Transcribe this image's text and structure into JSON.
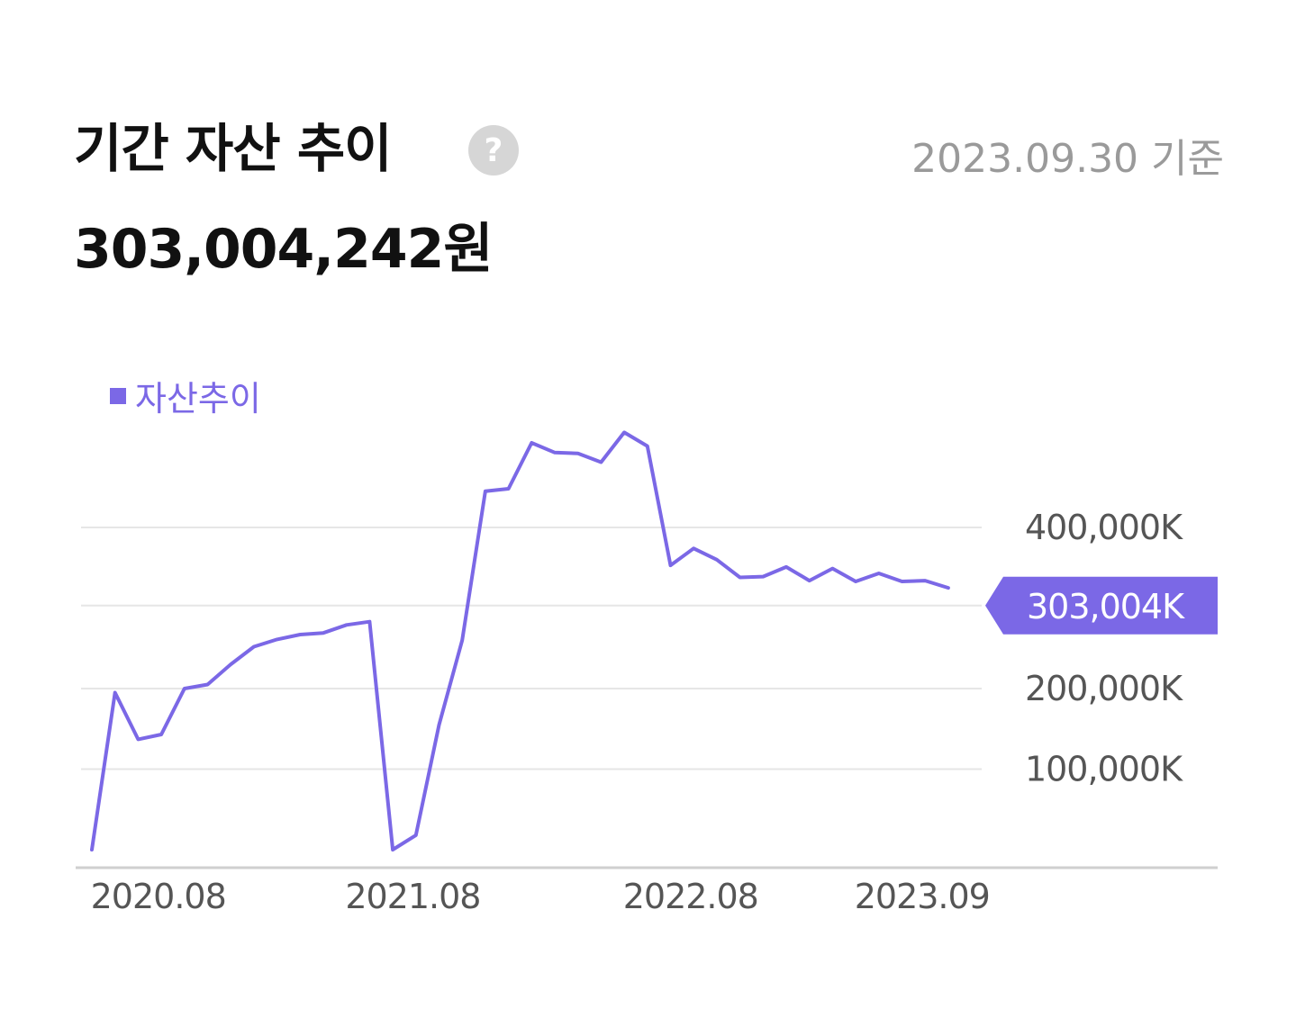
{
  "header": {
    "title": "기간 자산 추이",
    "help_glyph": "?",
    "as_of": "2023.09.30 기준",
    "amount": "303,004,242원"
  },
  "colors": {
    "line": "#7b68e6",
    "grid": "#e6e6e6",
    "axis": "#cfcfcf",
    "tick_text": "#555555"
  },
  "chart_data": {
    "type": "line",
    "legend": [
      {
        "name": "자산추이"
      }
    ],
    "series": [
      {
        "name": "자산추이",
        "values": [
          0,
          195000,
          137000,
          143000,
          200000,
          205000,
          230000,
          252000,
          261000,
          267000,
          269000,
          279000,
          283000,
          0,
          18000,
          155000,
          260000,
          445000,
          448000,
          505000,
          493000,
          492000,
          481000,
          518000,
          501000,
          353000,
          374000,
          360000,
          338000,
          339000,
          351000,
          334000,
          349000,
          333000,
          343000,
          333000,
          334000,
          325000
        ]
      }
    ],
    "y_ticks": [
      {
        "value": 100000,
        "label": "100,000K"
      },
      {
        "value": 200000,
        "label": "200,000K"
      },
      {
        "value": 400000,
        "label": "400,000K"
      }
    ],
    "x_ticks": [
      {
        "index": 1,
        "label": "2020.08"
      },
      {
        "index": 12,
        "label": "2021.08"
      },
      {
        "index": 24,
        "label": "2022.08"
      },
      {
        "index": 34,
        "label": "2023.09"
      }
    ],
    "current": {
      "value": 303004,
      "label": "303,004K"
    },
    "ylim": [
      -20000,
      510000
    ],
    "grid": true,
    "legend_position": "top-left"
  }
}
